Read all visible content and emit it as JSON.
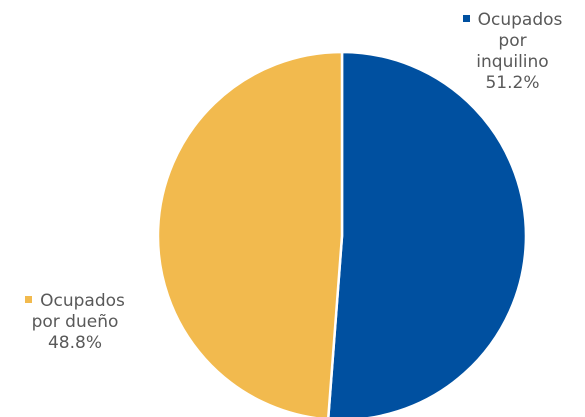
{
  "chart_data": {
    "type": "pie",
    "slices": [
      {
        "label": "Ocupados por inquilino",
        "label_lines": [
          "Ocupados",
          "por",
          "inquilino"
        ],
        "value": 51.2,
        "value_label": "51.2%",
        "color": "#0050A0"
      },
      {
        "label": "Ocupados por dueño",
        "label_lines": [
          "Ocupados",
          "por dueño"
        ],
        "value": 48.8,
        "value_label": "48.8%",
        "color": "#F2BA4E"
      }
    ],
    "start_angle": "12 o'clock",
    "direction": "clockwise",
    "slice_border_color": "#FFFFFF",
    "label_text_color": "#595959"
  }
}
